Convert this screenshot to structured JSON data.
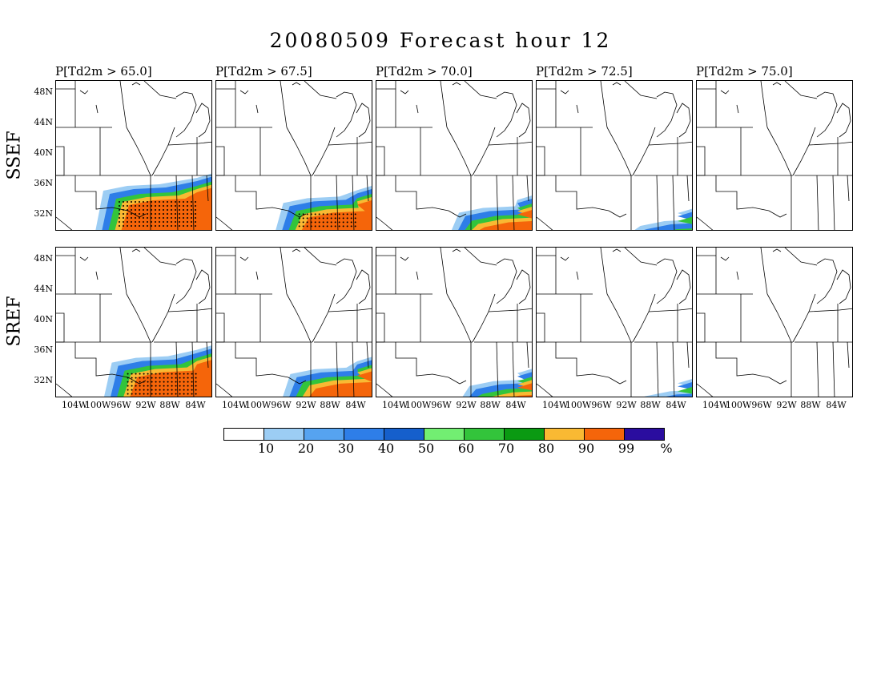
{
  "title": "20080509 Forecast hour 12",
  "panel_titles": [
    "P[Td2m > 65.0]",
    "P[Td2m > 67.5]",
    "P[Td2m > 70.0]",
    "P[Td2m > 72.5]",
    "P[Td2m > 75.0]"
  ],
  "rows": [
    {
      "label": "SSEF",
      "extents": [
        1.0,
        0.72,
        0.5,
        0.2,
        0.0
      ]
    },
    {
      "label": "SREF",
      "extents": [
        0.88,
        0.62,
        0.35,
        0.12,
        0.0
      ]
    }
  ],
  "lat_labels": [
    "48N",
    "44N",
    "40N",
    "36N",
    "32N"
  ],
  "lon_labels": [
    "104W",
    "100W",
    "96W",
    "92W",
    "88W",
    "84W"
  ],
  "colorbar": {
    "colors": [
      "#ffffff",
      "#9ccdf4",
      "#56a3f0",
      "#2e7ee8",
      "#155fcc",
      "#72ee72",
      "#33c43b",
      "#0a9a12",
      "#f9b933",
      "#f5650a",
      "#2a0d9f"
    ],
    "labels": [
      "10",
      "20",
      "30",
      "40",
      "50",
      "60",
      "70",
      "80",
      "90",
      "99",
      "%"
    ]
  },
  "colors": {
    "prob_low": "#9ccdf4",
    "prob_mid": "#2e7ee8",
    "prob_green": "#33c43b",
    "prob_high": "#f9b933",
    "prob_max": "#f5650a"
  }
}
